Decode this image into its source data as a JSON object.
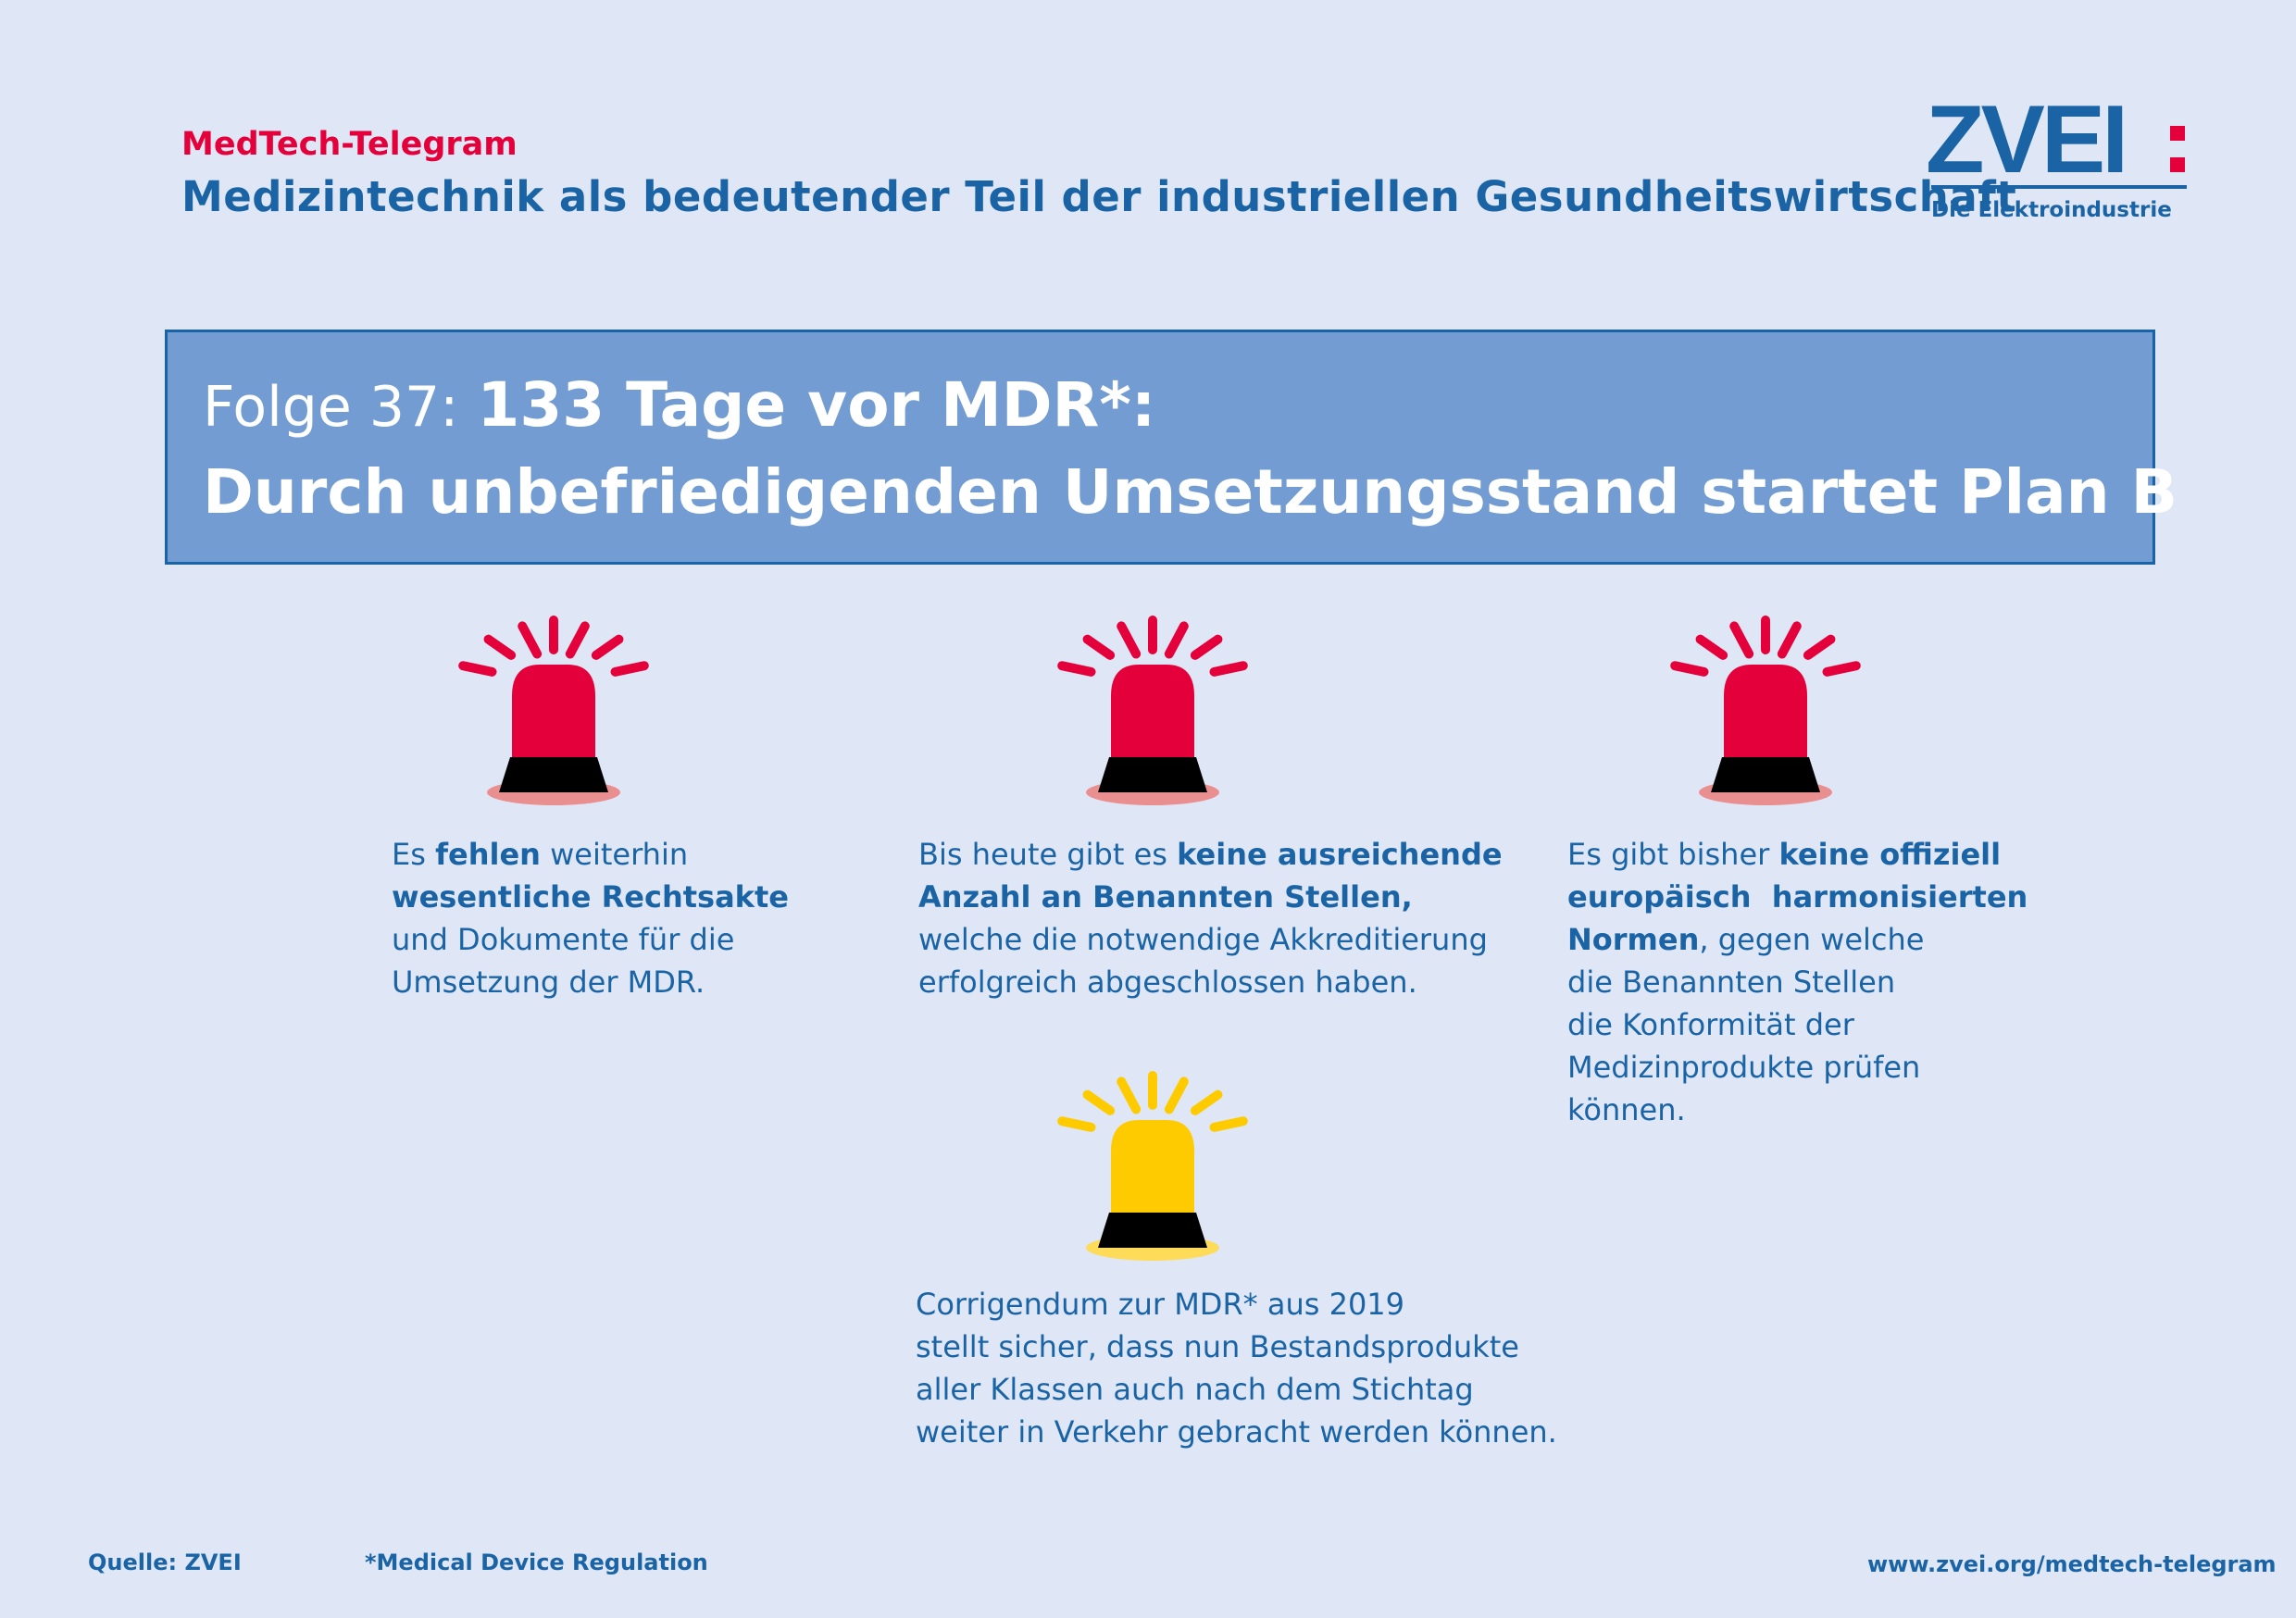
{
  "header": {
    "kicker": "MedTech-Telegram",
    "subtitle": "Medizintechnik als bedeutender Teil der industriellen Gesundheitswirtschaft"
  },
  "logo": {
    "wordmark": "ZVEI:",
    "tagline": "Die Elektroindustrie",
    "color": "#1a64a6",
    "accent": "#e4003a"
  },
  "banner": {
    "prefix": "Folge 37:",
    "headline_1": "133 Tage vor MDR*:",
    "headline_2": "Durch unbefriedigenden Umsetzungsstand startet Plan B",
    "background": "#739cd3"
  },
  "alerts": [
    {
      "icon": "red-siren-icon",
      "color": "#e4003a",
      "lines": [
        [
          {
            "t": "Es ",
            "b": false
          },
          {
            "t": "fehlen",
            "b": true
          },
          {
            "t": " weiterhin",
            "b": false
          }
        ],
        [
          {
            "t": "wesentliche Rechtsakte",
            "b": true
          }
        ],
        [
          {
            "t": "und Dokumente für die",
            "b": false
          }
        ],
        [
          {
            "t": "Umsetzung der MDR.",
            "b": false
          }
        ]
      ]
    },
    {
      "icon": "red-siren-icon",
      "color": "#e4003a",
      "lines": [
        [
          {
            "t": "Bis heute gibt es ",
            "b": false
          },
          {
            "t": "keine ausreichende",
            "b": true
          }
        ],
        [
          {
            "t": "Anzahl an Benannten Stellen,",
            "b": true
          }
        ],
        [
          {
            "t": "welche die notwendige Akkreditierung",
            "b": false
          }
        ],
        [
          {
            "t": "erfolgreich abgeschlossen haben.",
            "b": false
          }
        ]
      ]
    },
    {
      "icon": "red-siren-icon",
      "color": "#e4003a",
      "lines": [
        [
          {
            "t": "Es gibt bisher ",
            "b": false
          },
          {
            "t": "keine offiziell",
            "b": true
          }
        ],
        [
          {
            "t": "europäisch  harmonisierten",
            "b": true
          }
        ],
        [
          {
            "t": "Normen",
            "b": true
          },
          {
            "t": ", gegen welche",
            "b": false
          }
        ],
        [
          {
            "t": "die Benannten Stellen",
            "b": false
          }
        ],
        [
          {
            "t": "die Konformität der",
            "b": false
          }
        ],
        [
          {
            "t": "Medizinprodukte prüfen",
            "b": false
          }
        ],
        [
          {
            "t": "können.",
            "b": false
          }
        ]
      ]
    },
    {
      "icon": "yellow-siren-icon",
      "color": "#fecb00",
      "lines": [
        [
          {
            "t": "Corrigendum zur MDR* aus 2019",
            "b": false
          }
        ],
        [
          {
            "t": "stellt sicher, dass nun Bestandsprodukte",
            "b": false
          }
        ],
        [
          {
            "t": "aller Klassen auch nach dem Stichtag",
            "b": false
          }
        ],
        [
          {
            "t": "weiter in Verkehr gebracht werden können.",
            "b": false
          }
        ]
      ]
    }
  ],
  "footer": {
    "source": "Quelle: ZVEI",
    "footnote": "*Medical Device Regulation",
    "url": "www.zvei.org/medtech-telegram"
  }
}
